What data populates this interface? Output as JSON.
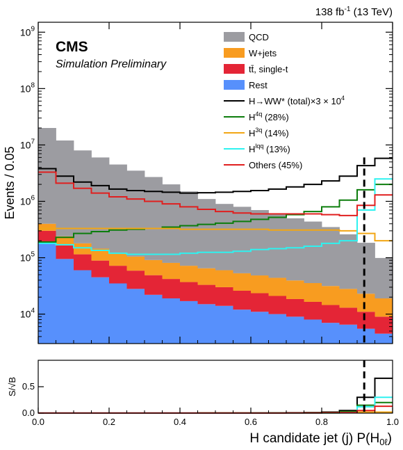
{
  "chart_data": [
    {
      "type": "area",
      "id": "main",
      "title": "",
      "lumi_label": "138 fb",
      "lumi_exp": "-1",
      "lumi_energy": "(13 TeV)",
      "cms_label": "CMS",
      "sub_label": "Simulation Preliminary",
      "xlabel": "",
      "ylabel": "Events / 0.05",
      "yscale": "log",
      "xlim": [
        0,
        1
      ],
      "ylim": [
        3000,
        1500000000
      ],
      "y_ticks": [
        {
          "value": 10000,
          "base": "10",
          "exp": "4"
        },
        {
          "value": 100000,
          "base": "10",
          "exp": "5"
        },
        {
          "value": 1000000,
          "base": "10",
          "exp": "6"
        },
        {
          "value": 10000000,
          "base": "10",
          "exp": "7"
        },
        {
          "value": 100000000,
          "base": "10",
          "exp": "8"
        },
        {
          "value": 1000000000,
          "base": "10",
          "exp": "9"
        }
      ],
      "bin_edges": [
        0,
        0.05,
        0.1,
        0.15,
        0.2,
        0.25,
        0.3,
        0.35,
        0.4,
        0.45,
        0.5,
        0.55,
        0.6,
        0.65,
        0.7,
        0.75,
        0.8,
        0.85,
        0.9,
        0.95,
        1.0
      ],
      "stack": [
        {
          "name": "Rest",
          "color": "#5790fc",
          "values": [
            180000,
            95000,
            60000,
            45000,
            35000,
            28000,
            22000,
            19000,
            17000,
            15000,
            14000,
            12000,
            11000,
            10000,
            9000,
            8000,
            7000,
            6500,
            5500,
            4500
          ]
        },
        {
          "name": "tt̄, single-t",
          "color": "#e42536",
          "values": [
            120000,
            70000,
            55000,
            44000,
            37000,
            31000,
            27000,
            23000,
            20000,
            18000,
            16000,
            14000,
            12500,
            11000,
            9500,
            8500,
            7500,
            6500,
            5500,
            4500
          ]
        },
        {
          "name": "W+jets",
          "color": "#f89c20",
          "values": [
            100000,
            75000,
            65000,
            56000,
            50000,
            46000,
            42000,
            39000,
            35000,
            32000,
            30000,
            27000,
            25000,
            23000,
            21000,
            19000,
            17000,
            15000,
            12000,
            10000
          ]
        },
        {
          "name": "QCD",
          "color": "#9c9ca1",
          "values": [
            19600000,
            11760000,
            7820000,
            5855000,
            4378000,
            3395000,
            2609000,
            1919000,
            1428000,
            1035000,
            840000,
            747000,
            651500,
            556000,
            460500,
            402500,
            318500,
            232000,
            161000,
            80000
          ]
        }
      ],
      "lines": [
        {
          "name": "H→WW* (total)×3 × 10",
          "name_exp": "4",
          "color": "#000000",
          "values": [
            3800000,
            2800000,
            2200000,
            1900000,
            1650000,
            1550000,
            1500000,
            1450000,
            1400000,
            1420000,
            1450000,
            1500000,
            1550000,
            1650000,
            1800000,
            2000000,
            2300000,
            2800000,
            4300000,
            5800000
          ]
        },
        {
          "name": "H",
          "name_sup": "4q",
          "name_suffix": " (28%)",
          "color": "#0c7d0c",
          "values": [
            190000,
            230000,
            270000,
            290000,
            310000,
            320000,
            330000,
            350000,
            370000,
            390000,
            410000,
            440000,
            480000,
            520000,
            580000,
            660000,
            800000,
            1050000,
            1600000,
            2000000
          ]
        },
        {
          "name": "H",
          "name_sup": "3q",
          "name_suffix": " (14%)",
          "color": "#f2a614",
          "values": [
            330000,
            330000,
            330000,
            330000,
            330000,
            330000,
            330000,
            330000,
            320000,
            320000,
            320000,
            320000,
            320000,
            310000,
            310000,
            310000,
            310000,
            300000,
            270000,
            200000
          ]
        },
        {
          "name": "H",
          "name_sup": "lqq",
          "name_suffix": " (13%)",
          "color": "#2ef2f0",
          "values": [
            180000,
            170000,
            150000,
            135000,
            120000,
            115000,
            115000,
            115000,
            120000,
            125000,
            125000,
            130000,
            140000,
            145000,
            150000,
            160000,
            180000,
            200000,
            700000,
            2500000
          ]
        },
        {
          "name": "Others (45%)",
          "color": "#e01f1f",
          "values": [
            3300000,
            2100000,
            1700000,
            1400000,
            1200000,
            1100000,
            1000000,
            900000,
            800000,
            720000,
            660000,
            620000,
            600000,
            600000,
            600000,
            600000,
            580000,
            560000,
            850000,
            1300000
          ]
        }
      ],
      "cut_line_x": 0.92,
      "legend_placement": "top-right"
    },
    {
      "type": "line",
      "id": "ratio",
      "xlabel": "H candidate jet (j) P(H",
      "xlabel_sub": "0ℓ",
      "xlabel_end": ")",
      "ylabel": "S/√B",
      "ylim": [
        0,
        1.0
      ],
      "xlim": [
        0,
        1
      ],
      "x_ticks": [
        {
          "value": 0.0,
          "label": "0.0"
        },
        {
          "value": 0.2,
          "label": "0.2"
        },
        {
          "value": 0.4,
          "label": "0.4"
        },
        {
          "value": 0.6,
          "label": "0.6"
        },
        {
          "value": 0.8,
          "label": "0.8"
        },
        {
          "value": 1.0,
          "label": "1.0"
        }
      ],
      "y_ticks": [
        {
          "value": 0.0,
          "label": "0.0"
        },
        {
          "value": 0.5,
          "label": "0.5"
        }
      ],
      "lines": [
        {
          "color": "#000000",
          "values": [
            0.001,
            0.001,
            0.001,
            0.001,
            0.001,
            0.001,
            0.001,
            0.002,
            0.002,
            0.003,
            0.003,
            0.004,
            0.005,
            0.006,
            0.008,
            0.012,
            0.02,
            0.05,
            0.3,
            0.66
          ]
        },
        {
          "color": "#0c7d0c",
          "values": [
            0,
            0,
            0,
            0,
            0,
            0,
            0,
            0,
            0,
            0.001,
            0.001,
            0.001,
            0.002,
            0.003,
            0.004,
            0.006,
            0.01,
            0.03,
            0.15,
            0.2
          ]
        },
        {
          "color": "#f2a614",
          "values": [
            0,
            0,
            0,
            0,
            0,
            0,
            0,
            0,
            0,
            0.001,
            0.001,
            0.001,
            0.001,
            0.002,
            0.002,
            0.003,
            0.004,
            0.008,
            0.02,
            0.02
          ]
        },
        {
          "color": "#2ef2f0",
          "values": [
            0,
            0,
            0,
            0,
            0,
            0,
            0,
            0,
            0,
            0,
            0,
            0,
            0.001,
            0.001,
            0.001,
            0.002,
            0.004,
            0.01,
            0.12,
            0.3
          ]
        },
        {
          "color": "#e01f1f",
          "values": [
            0.001,
            0.001,
            0.001,
            0.001,
            0.001,
            0.001,
            0.001,
            0.001,
            0.001,
            0.001,
            0.001,
            0.002,
            0.002,
            0.002,
            0.003,
            0.004,
            0.006,
            0.012,
            0.05,
            0.13
          ]
        }
      ],
      "cut_line_x": 0.92
    }
  ]
}
